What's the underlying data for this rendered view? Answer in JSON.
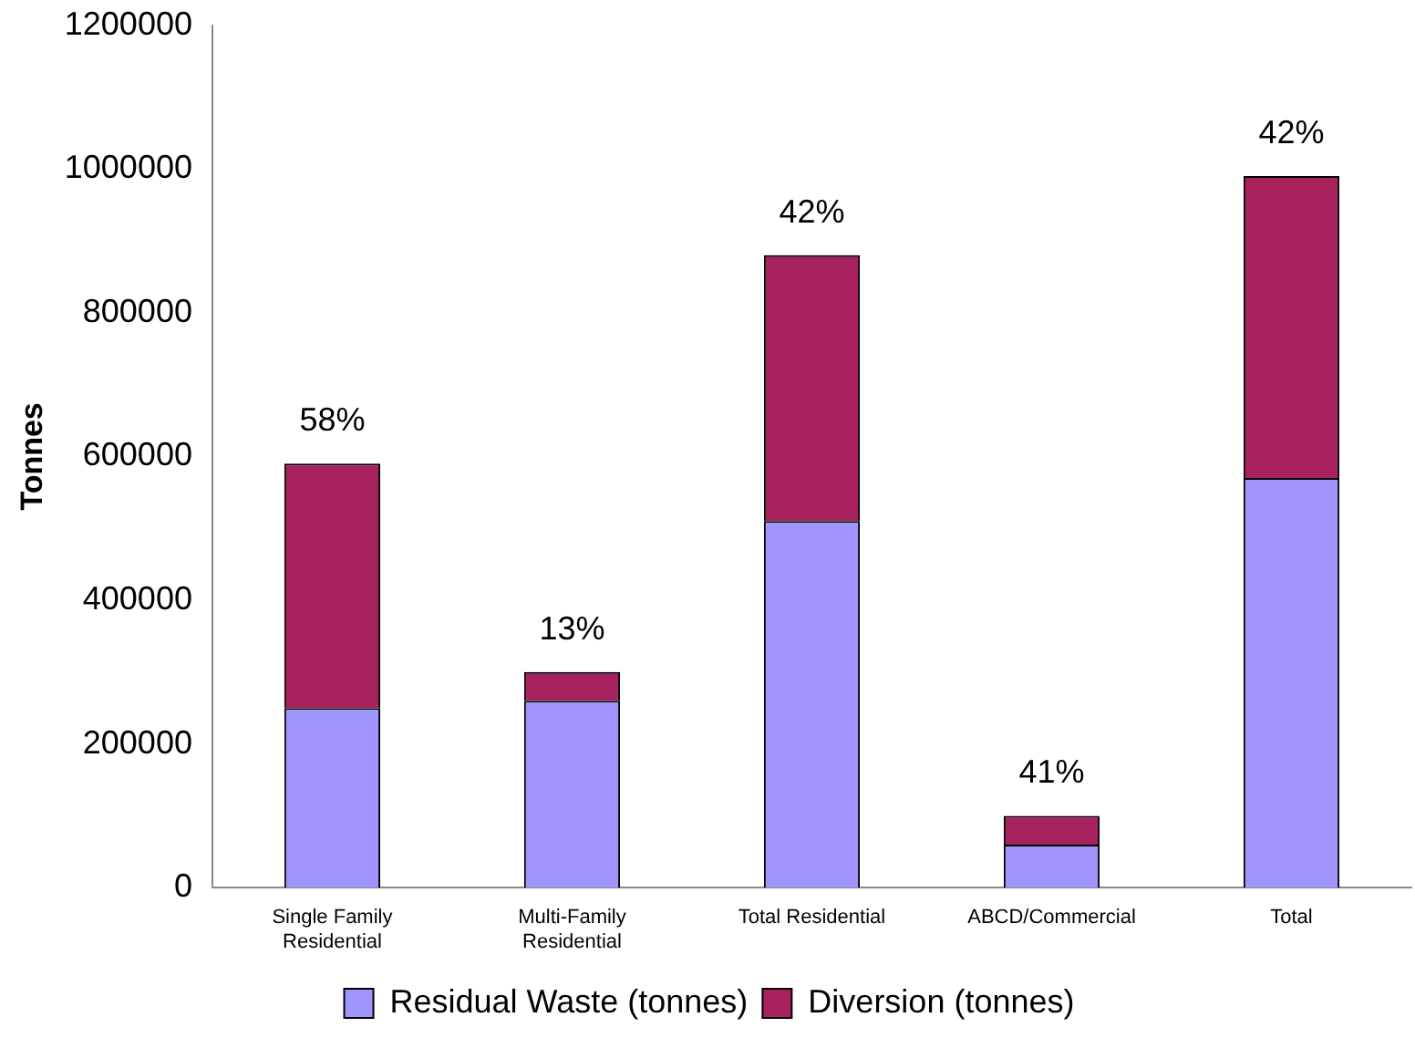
{
  "chart_data": {
    "type": "bar",
    "stacked": true,
    "ylabel": "Tonnes",
    "categories": [
      "Single Family\nResidential",
      "Multi-Family\nResidential",
      "Total Residential",
      "ABCD/Commercial",
      "Total"
    ],
    "series": [
      {
        "name": "Residual Waste (tonnes)",
        "color": "#9f95fc",
        "values": [
          250000,
          260000,
          510000,
          60000,
          570000
        ]
      },
      {
        "name": "Diversion (tonnes)",
        "color": "#a8225e",
        "values": [
          340000,
          40000,
          370000,
          40000,
          420000
        ]
      }
    ],
    "ylim": [
      0,
      1200000
    ],
    "yticks": [
      0,
      200000,
      400000,
      600000,
      800000,
      1000000,
      1200000
    ],
    "grid": false,
    "legend": "bottom",
    "annotations": [
      {
        "text": "58%",
        "x": "Single Family\nResidential",
        "y": 590000
      },
      {
        "text": "13%",
        "x": "Multi-Family\nResidential",
        "y": 300000
      },
      {
        "text": "42%",
        "x": "Total Residential",
        "y": 880000
      },
      {
        "text": "41%",
        "x": "ABCD/Commercial",
        "y": 100000
      },
      {
        "text": "42%",
        "x": "Total",
        "y": 990000
      }
    ]
  }
}
